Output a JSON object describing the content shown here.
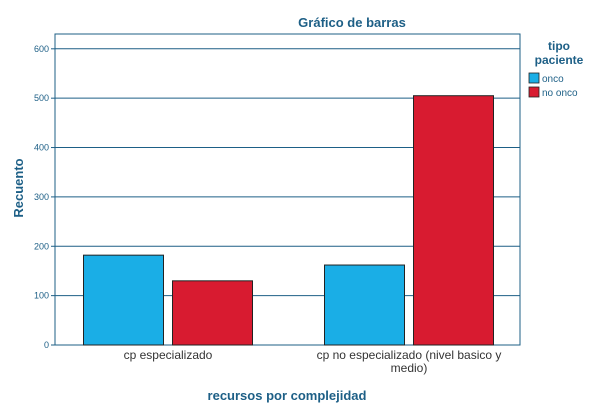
{
  "chart_data": {
    "type": "bar",
    "title": "Gráfico de barras",
    "xlabel": "recursos por complejidad",
    "ylabel": "Recuento",
    "ylim": [
      0,
      630
    ],
    "yticks": [
      0,
      100,
      200,
      300,
      400,
      500,
      600
    ],
    "grid": true,
    "legend_position": "right",
    "legend_title": [
      "tipo",
      "paciente"
    ],
    "categories": [
      [
        "cp especializado"
      ],
      [
        "cp no especializado (nivel basico y",
        "medio)"
      ]
    ],
    "series": [
      {
        "name": "onco",
        "color": "#1aaee6",
        "values": [
          182,
          162
        ]
      },
      {
        "name": "no onco",
        "color": "#d81b30",
        "values": [
          130,
          505
        ]
      }
    ]
  }
}
